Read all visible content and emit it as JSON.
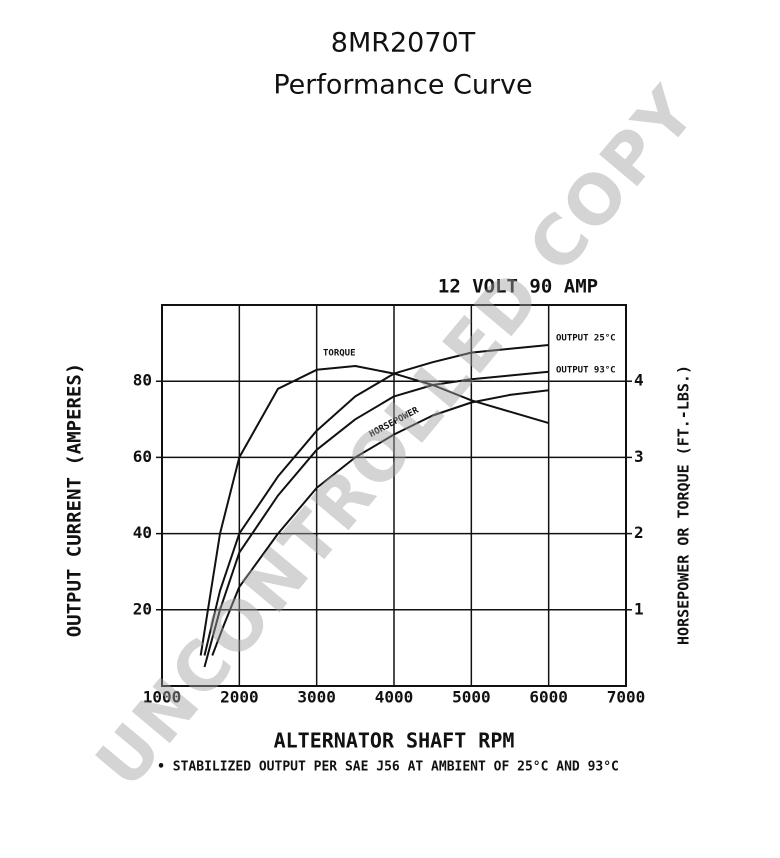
{
  "chart_data": {
    "type": "line",
    "title": "8MR2070T",
    "subtitle": "Performance Curve",
    "annotation": "12 VOLT 90 AMP",
    "footnote": "• STABILIZED OUTPUT PER SAE J56 AT AMBIENT OF 25°C AND 93°C",
    "watermark": "UNCONTROLLED COPY",
    "xlabel": "ALTERNATOR SHAFT RPM",
    "ylabel": "OUTPUT CURRENT (AMPERES)",
    "y2label": "HORSEPOWER OR TORQUE (FT.-LBS.)",
    "xlim": [
      1000,
      7000
    ],
    "xticks": [
      1000,
      2000,
      3000,
      4000,
      5000,
      6000,
      7000
    ],
    "ylim": [
      0,
      100
    ],
    "yticks": [
      20,
      40,
      60,
      80
    ],
    "y2lim": [
      0,
      5
    ],
    "y2ticks": [
      1,
      2,
      3,
      4
    ],
    "grid": true,
    "series": [
      {
        "name": "TORQUE",
        "color": "#111111",
        "axis": "y2",
        "x": [
          1500,
          1750,
          2000,
          2500,
          3000,
          3500,
          4000,
          4500,
          5000,
          5500,
          6000
        ],
        "values": [
          0.4,
          2.0,
          3.0,
          3.9,
          4.15,
          4.2,
          4.1,
          3.95,
          3.75,
          3.6,
          3.45
        ]
      },
      {
        "name": "OUTPUT 25°C",
        "color": "#111111",
        "x": [
          1550,
          1750,
          2000,
          2500,
          3000,
          3500,
          4000,
          4500,
          5000,
          5500,
          6000
        ],
        "values": [
          8,
          25,
          40,
          55,
          67,
          76,
          82,
          85,
          87.5,
          88.5,
          89.5
        ]
      },
      {
        "name": "OUTPUT 93°C",
        "color": "#111111",
        "x": [
          1550,
          1750,
          2000,
          2500,
          3000,
          3500,
          4000,
          4500,
          5000,
          5500,
          6000
        ],
        "values": [
          5,
          20,
          35,
          50,
          62,
          70,
          76,
          79,
          80.5,
          81.5,
          82.5
        ]
      },
      {
        "name": "HORSEPOWER",
        "color": "#111111",
        "axis": "y2",
        "x": [
          1650,
          1800,
          2000,
          2500,
          3000,
          3500,
          4000,
          4500,
          5000,
          5500,
          6000
        ],
        "values": [
          0.4,
          0.8,
          1.3,
          2.0,
          2.6,
          3.0,
          3.3,
          3.55,
          3.72,
          3.82,
          3.88
        ]
      }
    ]
  }
}
